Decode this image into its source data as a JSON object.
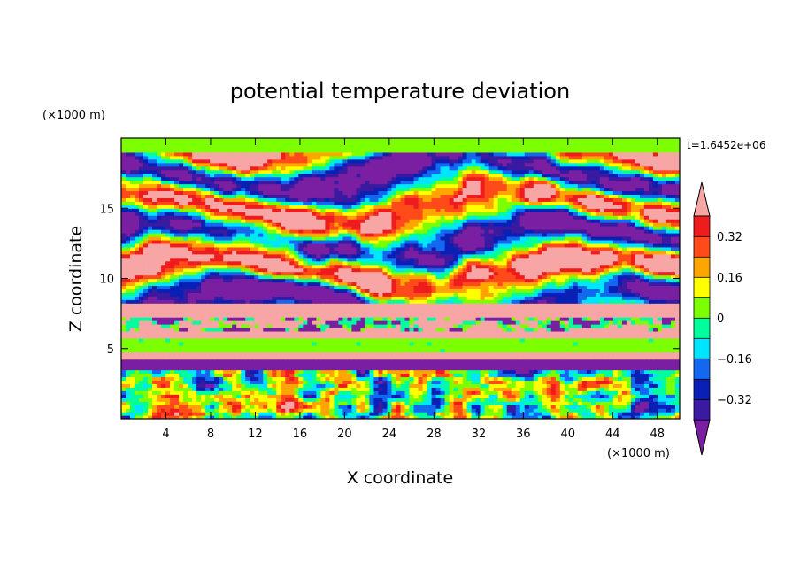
{
  "chart_data": {
    "type": "heatmap",
    "title": "potential temperature deviation",
    "xlabel": "X coordinate",
    "ylabel": "Z coordinate",
    "x_unit": "(×1000 m)",
    "y_unit": "(×1000 m)",
    "time_label": "t=1.6452e+06",
    "xlim": [
      0,
      50
    ],
    "ylim": [
      0,
      20
    ],
    "x_ticks": [
      4,
      8,
      12,
      16,
      20,
      24,
      28,
      32,
      36,
      40,
      44,
      48
    ],
    "y_ticks": [
      5,
      10,
      15
    ],
    "colorbar": {
      "levels": [
        -0.4,
        -0.32,
        -0.24,
        -0.16,
        -0.08,
        0,
        0.08,
        0.16,
        0.24,
        0.32,
        0.4
      ],
      "labels": [
        "0.32",
        "0.16",
        "0",
        "−0.16",
        "−0.32"
      ],
      "label_values": [
        0.32,
        0.16,
        0,
        -0.16,
        -0.32
      ],
      "colors": [
        "#7b1fa2",
        "#3a1aa0",
        "#0a20b4",
        "#1468f0",
        "#00e5ff",
        "#00ff9c",
        "#7cff00",
        "#ffff00",
        "#ffa500",
        "#ff4a1a",
        "#ee1c1c",
        "#f7a5a5"
      ],
      "extend": "both"
    },
    "layers": [
      {
        "z_range": [
          0,
          3.6
        ],
        "pattern": "turbulent"
      },
      {
        "z_range": [
          3.6,
          4.2
        ],
        "value": -0.45
      },
      {
        "z_range": [
          4.2,
          4.8
        ],
        "value": 0.45
      },
      {
        "z_range": [
          4.8,
          5.8
        ],
        "value": 0.02
      },
      {
        "z_range": [
          5.8,
          6.3
        ],
        "value": 0.45
      },
      {
        "z_range": [
          6.3,
          7.3
        ],
        "pattern": "mixed"
      },
      {
        "z_range": [
          7.3,
          8.2
        ],
        "value": 0.45
      },
      {
        "z_range": [
          8.2,
          19.0
        ],
        "pattern": "wavy"
      },
      {
        "z_range": [
          19.0,
          20.0
        ],
        "value": 0.05
      }
    ]
  }
}
